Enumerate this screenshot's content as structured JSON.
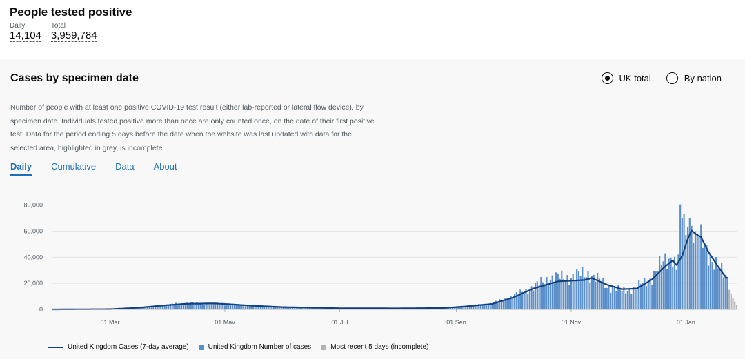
{
  "header": {
    "title": "People tested positive",
    "daily_label": "Daily",
    "daily_value": "14,104",
    "total_label": "Total",
    "total_value": "3,959,784"
  },
  "card": {
    "title": "Cases by specimen date",
    "radio_options": [
      {
        "label": "UK total",
        "selected": true
      },
      {
        "label": "By nation",
        "selected": false
      }
    ],
    "description": "Number of people with at least one positive COVID-19 test result (either lab-reported or lateral flow device), by specimen date. Individuals tested positive more than once are only counted once, on the date of their first positive test. Data for the period ending 5 days before the date when the website was last updated with data for the selected area, highlighted in grey, is incomplete.",
    "tabs": [
      {
        "label": "Daily",
        "active": true
      },
      {
        "label": "Cumulative",
        "active": false
      },
      {
        "label": "Data",
        "active": false
      },
      {
        "label": "About",
        "active": false
      }
    ]
  },
  "colors": {
    "bar": "#5b8fc9",
    "line": "#12407f",
    "incomplete": "#b1b4b6",
    "tab_accent": "#1d70b8"
  },
  "chart_data": {
    "type": "bar",
    "title": "",
    "x_start": "2020-01-30",
    "x_end": "2021-01-28",
    "x_ticks": [
      "01 Mar",
      "01 May",
      "01 Jul",
      "01 Sep",
      "01 Nov",
      "01 Jan"
    ],
    "x_tick_dates": [
      "2020-03-01",
      "2020-05-01",
      "2020-07-01",
      "2020-09-01",
      "2020-11-01",
      "2021-01-01"
    ],
    "y_ticks": [
      "0",
      "20,000",
      "40,000",
      "60,000",
      "80,000"
    ],
    "ylim": [
      0,
      84000
    ],
    "avg_keypoints": [
      [
        "2020-01-30",
        0
      ],
      [
        "2020-03-01",
        200
      ],
      [
        "2020-03-15",
        1200
      ],
      [
        "2020-03-31",
        3200
      ],
      [
        "2020-04-10",
        4300
      ],
      [
        "2020-04-25",
        4600
      ],
      [
        "2020-05-01",
        4200
      ],
      [
        "2020-05-15",
        2900
      ],
      [
        "2020-06-01",
        1800
      ],
      [
        "2020-07-01",
        900
      ],
      [
        "2020-08-01",
        800
      ],
      [
        "2020-08-25",
        1100
      ],
      [
        "2020-09-05",
        2200
      ],
      [
        "2020-09-20",
        4200
      ],
      [
        "2020-10-01",
        9000
      ],
      [
        "2020-10-12",
        16000
      ],
      [
        "2020-10-25",
        21500
      ],
      [
        "2020-11-08",
        22500
      ],
      [
        "2020-11-12",
        24000
      ],
      [
        "2020-11-20",
        19000
      ],
      [
        "2020-11-28",
        15500
      ],
      [
        "2020-12-06",
        16000
      ],
      [
        "2020-12-14",
        23000
      ],
      [
        "2020-12-21",
        33000
      ],
      [
        "2020-12-25",
        37500
      ],
      [
        "2020-12-27",
        34000
      ],
      [
        "2020-12-30",
        41000
      ],
      [
        "2021-01-02",
        54000
      ],
      [
        "2021-01-04",
        60500
      ],
      [
        "2021-01-06",
        58000
      ],
      [
        "2021-01-09",
        55500
      ],
      [
        "2021-01-13",
        44000
      ],
      [
        "2021-01-18",
        33000
      ],
      [
        "2021-01-22",
        25000
      ],
      [
        "2021-01-28",
        18000
      ]
    ],
    "bar_keypoints": [
      [
        "2020-01-30",
        0
      ],
      [
        "2020-03-01",
        200
      ],
      [
        "2020-03-15",
        1200
      ],
      [
        "2020-03-31",
        3500
      ],
      [
        "2020-04-10",
        4800
      ],
      [
        "2020-04-25",
        4300
      ],
      [
        "2020-05-01",
        4000
      ],
      [
        "2020-05-15",
        2900
      ],
      [
        "2020-06-01",
        1800
      ],
      [
        "2020-07-01",
        900
      ],
      [
        "2020-08-01",
        800
      ],
      [
        "2020-08-25",
        1100
      ],
      [
        "2020-09-05",
        2400
      ],
      [
        "2020-09-20",
        4600
      ],
      [
        "2020-10-01",
        10000
      ],
      [
        "2020-10-12",
        17000
      ],
      [
        "2020-10-20",
        24000
      ],
      [
        "2020-11-01",
        25000
      ],
      [
        "2020-11-10",
        28000
      ],
      [
        "2020-11-20",
        18000
      ],
      [
        "2020-11-28",
        14000
      ],
      [
        "2020-12-06",
        17000
      ],
      [
        "2020-12-14",
        25000
      ],
      [
        "2020-12-21",
        38000
      ],
      [
        "2020-12-25",
        42000
      ],
      [
        "2020-12-27",
        30000
      ],
      [
        "2020-12-30",
        68000
      ],
      [
        "2021-01-02",
        76000
      ],
      [
        "2021-01-04",
        65000
      ],
      [
        "2021-01-06",
        62000
      ],
      [
        "2021-01-09",
        52000
      ],
      [
        "2021-01-13",
        44000
      ],
      [
        "2021-01-18",
        32000
      ],
      [
        "2021-01-22",
        25000
      ],
      [
        "2021-01-28",
        19000
      ]
    ],
    "peak_bars": [
      [
        "2020-12-29",
        80500
      ],
      [
        "2020-12-30",
        70000
      ],
      [
        "2021-01-01",
        57000
      ],
      [
        "2021-01-02",
        63000
      ],
      [
        "2021-01-04",
        64000
      ],
      [
        "2021-01-06",
        60000
      ],
      [
        "2021-01-07",
        58000
      ]
    ],
    "incomplete_values": [
      15000,
      12000,
      9000,
      6000,
      3500
    ],
    "legend": [
      {
        "label": "United Kingdom Cases (7-day average)",
        "kind": "line"
      },
      {
        "label": "United Kingdom Number of cases",
        "kind": "bar"
      },
      {
        "label": "Most recent 5 days (incomplete)",
        "kind": "incomplete"
      }
    ]
  }
}
